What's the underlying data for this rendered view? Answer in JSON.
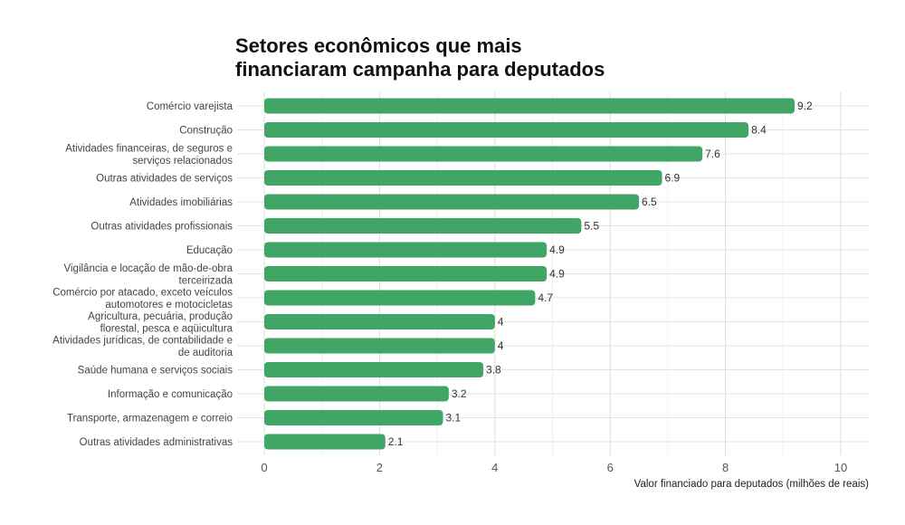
{
  "chart_data": {
    "type": "bar",
    "orientation": "horizontal",
    "title_lines": [
      "Setores econômicos que mais",
      "financiaram campanha para deputados"
    ],
    "xlabel": "Valor financiado para deputados (milhões de reais)",
    "ylabel": "",
    "xlim": [
      0,
      10.5
    ],
    "xticks": [
      0,
      2,
      4,
      6,
      8,
      10
    ],
    "grid": true,
    "bar_color": "#41a566",
    "categories": [
      [
        "Comércio varejista"
      ],
      [
        "Construção"
      ],
      [
        "Atividades financeiras, de seguros e",
        "serviços relacionados"
      ],
      [
        "Outras atividades de serviços"
      ],
      [
        "Atividades imobiliárias"
      ],
      [
        "Outras atividades profissionais"
      ],
      [
        "Educação"
      ],
      [
        "Vigilância e locação de mão-de-obra",
        "terceirizada"
      ],
      [
        "Comércio por atacado, exceto veículos",
        "automotores e motocicletas"
      ],
      [
        "Agricultura, pecuária, produção",
        "florestal, pesca e aqüicultura"
      ],
      [
        "Atividades jurídicas, de contabilidade e",
        "de auditoria"
      ],
      [
        "Saúde humana e serviços sociais"
      ],
      [
        "Informação e comunicação"
      ],
      [
        "Transporte, armazenagem e correio"
      ],
      [
        "Outras atividades administrativas"
      ]
    ],
    "values": [
      9.2,
      8.4,
      7.6,
      6.9,
      6.5,
      5.5,
      4.9,
      4.9,
      4.7,
      4,
      4,
      3.8,
      3.2,
      3.1,
      2.1
    ],
    "value_labels": [
      "9.2",
      "8.4",
      "7.6",
      "6.9",
      "6.5",
      "5.5",
      "4.9",
      "4.9",
      "4.7",
      "4",
      "4",
      "3.8",
      "3.2",
      "3.1",
      "2.1"
    ]
  }
}
